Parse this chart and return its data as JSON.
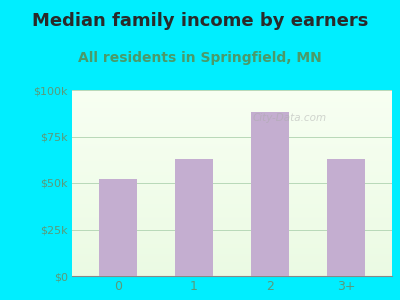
{
  "title": "Median family income by earners",
  "subtitle": "All residents in Springfield, MN",
  "categories": [
    "0",
    "1",
    "2",
    "3+"
  ],
  "values": [
    52000,
    63000,
    88000,
    63000
  ],
  "bar_color": "#c4aed0",
  "title_color": "#2a2a2a",
  "subtitle_color": "#4a9a6a",
  "background_color": "#00eeff",
  "ylim": [
    0,
    100000
  ],
  "yticks": [
    0,
    25000,
    50000,
    75000,
    100000
  ],
  "ytick_labels": [
    "$0",
    "$25k",
    "$50k",
    "$75k",
    "$100k"
  ],
  "title_fontsize": 13,
  "subtitle_fontsize": 10,
  "tick_color": "#5a9a7a",
  "xlabel_color": "#5a9a7a",
  "watermark": "City-Data.com"
}
